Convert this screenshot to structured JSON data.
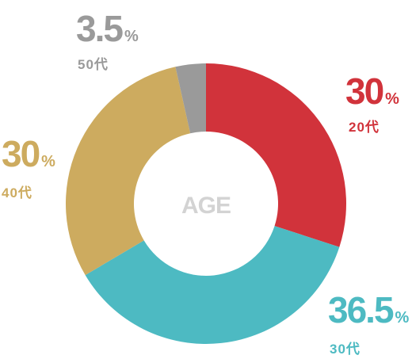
{
  "chart_data": {
    "type": "donut",
    "center_label": "AGE",
    "categories": [
      "20代",
      "30代",
      "40代",
      "50代"
    ],
    "values": [
      30,
      36.5,
      30,
      3.5
    ],
    "value_labels": [
      "30%",
      "36.5%",
      "30%",
      "3.5%"
    ],
    "colors": [
      "#d1333b",
      "#4dbac2",
      "#cdab5f",
      "#9a9a9a"
    ]
  }
}
